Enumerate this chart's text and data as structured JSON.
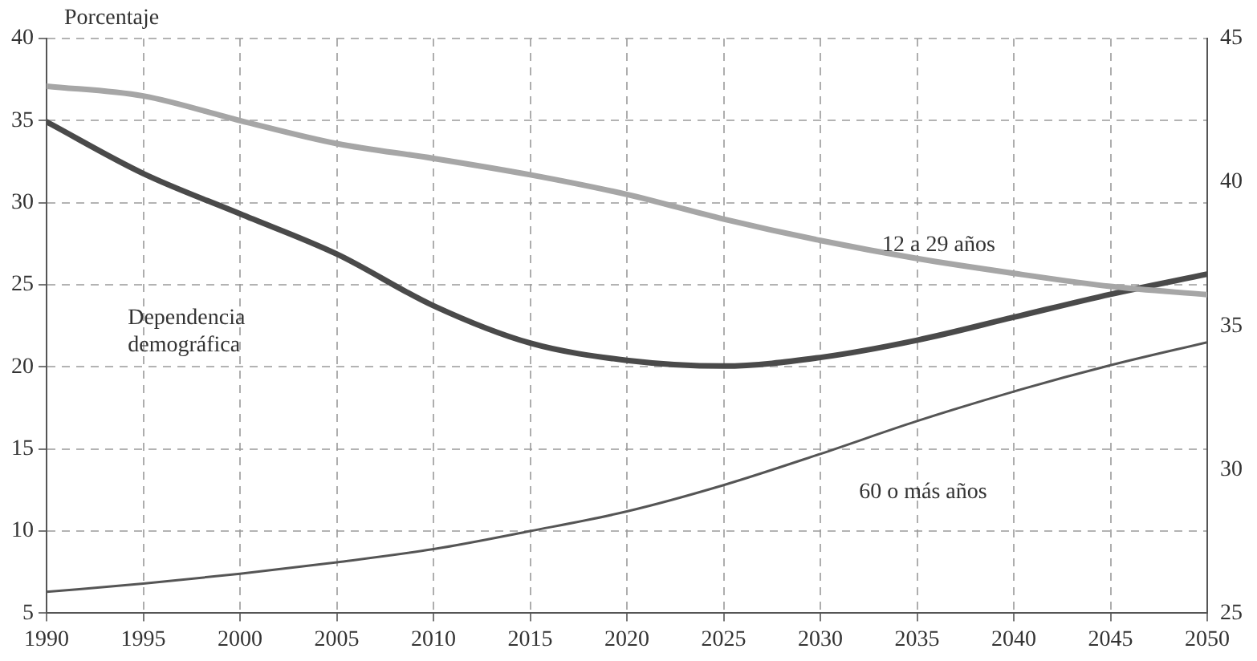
{
  "chart_data": {
    "type": "line",
    "ylabel": "Porcentaje",
    "x": [
      1990,
      1995,
      2000,
      2005,
      2010,
      2015,
      2020,
      2025,
      2030,
      2035,
      2040,
      2045,
      2050
    ],
    "series": [
      {
        "color": "#a6a6a6",
        "values": [
          37.1,
          36.5,
          35,
          33.6,
          32.7,
          31.7,
          30.5,
          29.0,
          27.7,
          26.6,
          25.7,
          24.9,
          24.4
        ]
      },
      {
        "color": "#4a4a4a",
        "axis": "y2",
        "values": [
          42.1,
          40.3,
          38.9,
          37.5,
          35.7,
          34.4,
          33.8,
          33.6,
          33.9,
          34.5,
          35.3,
          36.1,
          36.8
        ]
      },
      {
        "color": "#555555",
        "values": [
          6.3,
          6.8,
          7.4,
          8.1,
          8.9,
          10.0,
          11.2,
          12.8,
          14.7,
          16.7,
          18.5,
          20.1,
          21.5
        ]
      }
    ],
    "xlim": [
      1990,
      2050
    ],
    "xticks": [
      1990,
      1995,
      2000,
      2005,
      2010,
      2015,
      2020,
      2025,
      2030,
      2035,
      2040,
      2045,
      2050
    ],
    "ylim": [
      5,
      40
    ],
    "yticks": [
      5,
      10,
      15,
      20,
      25,
      30,
      35,
      40
    ],
    "y2lim": [
      25,
      45
    ],
    "y2ticks": [
      25,
      30,
      35,
      40,
      45
    ],
    "grid": true,
    "legend": false,
    "marker": "none",
    "line_style": "solid",
    "annotations": [
      "12 a 29 años",
      "Dependencia demográfica",
      "60 o más años"
    ]
  }
}
